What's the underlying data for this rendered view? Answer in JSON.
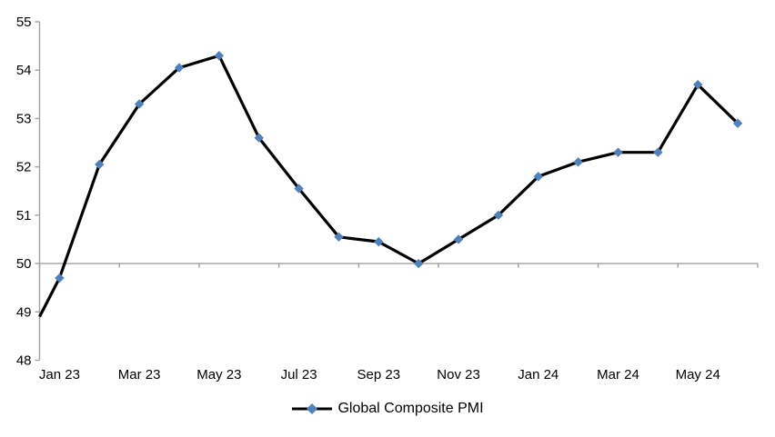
{
  "chart_data": {
    "type": "line",
    "title": "",
    "categories": [
      "Jan 23",
      "Feb 23",
      "Mar 23",
      "Apr 23",
      "May 23",
      "Jun 23",
      "Jul 23",
      "Aug 23",
      "Sep 23",
      "Oct 23",
      "Nov 23",
      "Dec 23",
      "Jan 24",
      "Feb 24",
      "Mar 24",
      "Apr 24",
      "May 24",
      "Jun 24"
    ],
    "series": [
      {
        "name": "Global Composite PMI",
        "values": [
          49.7,
          52.05,
          53.3,
          54.05,
          54.3,
          52.6,
          51.55,
          50.55,
          50.45,
          50.0,
          50.5,
          51.0,
          51.8,
          52.1,
          52.3,
          52.3,
          53.7,
          52.9
        ],
        "line_color": "#000000",
        "marker": "diamond",
        "marker_color": "#4f81bd"
      }
    ],
    "left_edge_entry_value": 48.9,
    "x_tick_label_interval": 2,
    "x_tick_labels_shown": [
      "Jan 23",
      "Mar 23",
      "May 23",
      "Jul 23",
      "Sep 23",
      "Nov 23",
      "Jan 24",
      "Mar 24",
      "May 24"
    ],
    "ylim": [
      48,
      55
    ],
    "y_ticks": [
      48,
      49,
      50,
      51,
      52,
      53,
      54,
      55
    ],
    "category_axis_cross_value": 50,
    "grid": "off",
    "legend_position": "bottom",
    "axis_color": "#a0a0a0",
    "text_color": "#000000"
  }
}
